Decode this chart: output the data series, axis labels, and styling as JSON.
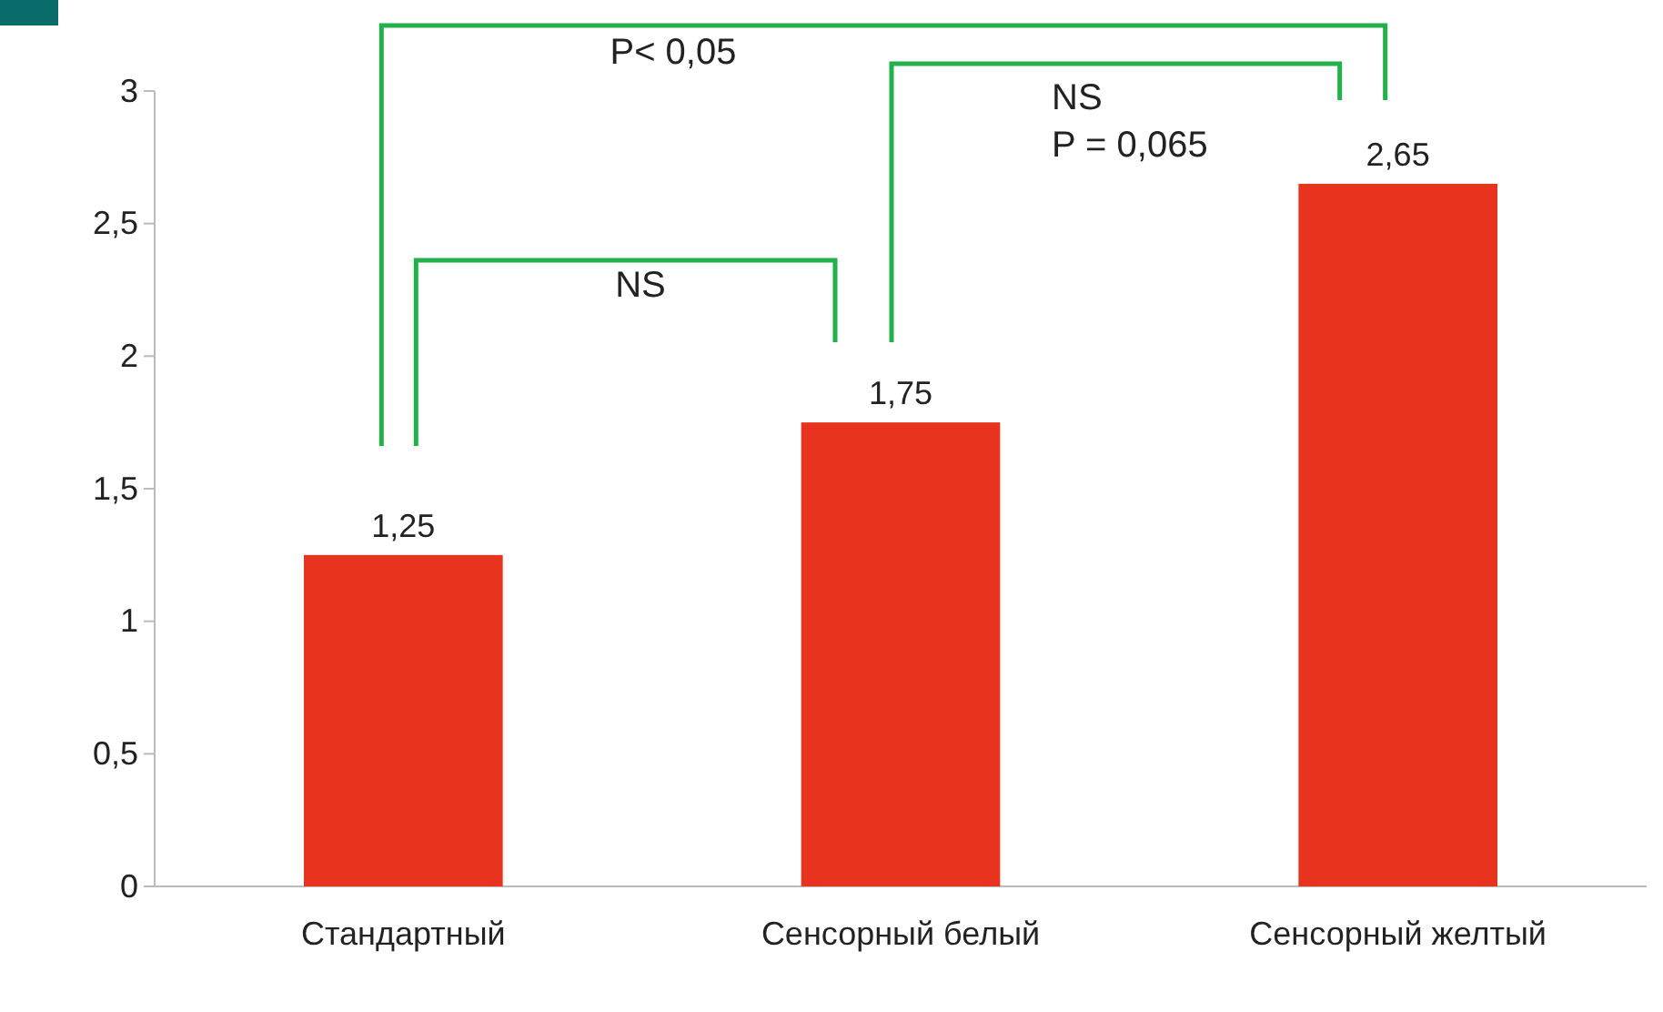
{
  "chart_data": {
    "type": "bar",
    "categories": [
      "Стандартный",
      "Сенсорный белый",
      "Сенсорный желтый"
    ],
    "values": [
      1.25,
      1.75,
      2.65
    ],
    "value_labels": [
      "1,25",
      "1,75",
      "2,65"
    ],
    "color": "#e8331f",
    "ylim": [
      0,
      3
    ],
    "yticks": [
      0,
      {
        "value": 0.5,
        "label": "0,5"
      },
      1,
      {
        "value": 1.5,
        "label": "1,5"
      },
      2,
      {
        "value": 2.5,
        "label": "2,5"
      },
      3
    ],
    "grid": false,
    "annotations": [
      "P< 0,05",
      "NS",
      "NS\nP = 0,065"
    ]
  }
}
